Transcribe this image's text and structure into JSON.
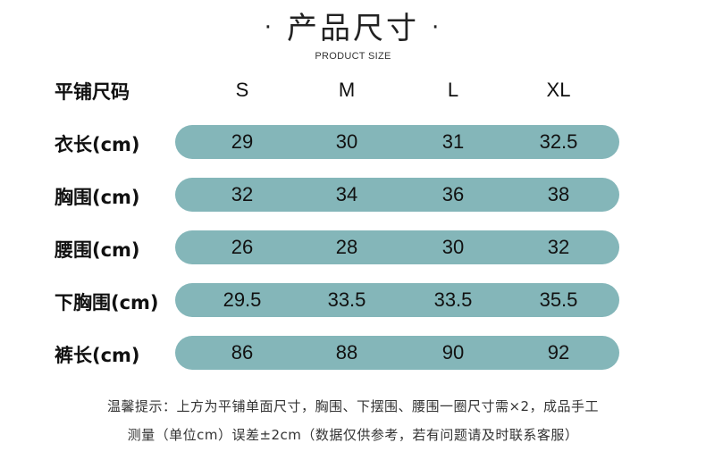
{
  "title": "产品尺寸",
  "subtitle": "PRODUCT SIZE",
  "header_label": "平铺尺码",
  "sizes": [
    "S",
    "M",
    "L",
    "XL"
  ],
  "rows": [
    {
      "label": "衣长(cm)",
      "values": [
        "29",
        "30",
        "31",
        "32.5"
      ]
    },
    {
      "label": "胸围(cm)",
      "values": [
        "32",
        "34",
        "36",
        "38"
      ]
    },
    {
      "label": "腰围(cm)",
      "values": [
        "26",
        "28",
        "30",
        "32"
      ]
    },
    {
      "label": "下胸围(cm)",
      "values": [
        "29.5",
        "33.5",
        "33.5",
        "35.5"
      ]
    },
    {
      "label": "裤长(cm)",
      "values": [
        "86",
        "88",
        "90",
        "92"
      ]
    }
  ],
  "note_line1": "温馨提示：上方为平铺单面尺寸，胸围、下摆围、腰围一圈尺寸需×2，成品手工",
  "note_line2": "测量（单位cm）误差±2cm（数据仅供参考，若有问题请及时联系客服）",
  "colors": {
    "pill": "#84b6b9"
  }
}
